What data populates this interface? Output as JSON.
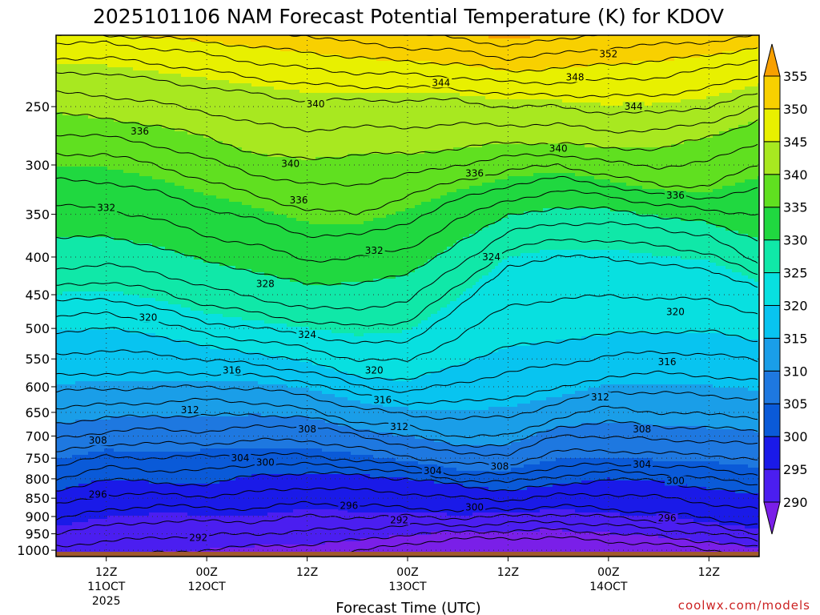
{
  "chart_data": {
    "type": "heatmap",
    "title": "2025101106 NAM Forecast Potential Temperature (K) for KDOV",
    "xlabel": "Forecast Time (UTC)",
    "ylabel": "",
    "credit": "coolwx.com/models",
    "y_scale": "log-pressure",
    "ylim": [
      1020,
      200
    ],
    "xlim": [
      6,
      90
    ],
    "grid": true,
    "y_ticks": [
      250,
      300,
      350,
      400,
      450,
      500,
      550,
      600,
      650,
      700,
      750,
      800,
      850,
      900,
      950,
      1000
    ],
    "x_ticks": [
      {
        "hour": 12,
        "lines": [
          "12Z",
          "11OCT",
          "2025"
        ]
      },
      {
        "hour": 24,
        "lines": [
          "00Z",
          "12OCT"
        ]
      },
      {
        "hour": 36,
        "lines": [
          "12Z"
        ]
      },
      {
        "hour": 48,
        "lines": [
          "00Z",
          "13OCT"
        ]
      },
      {
        "hour": 60,
        "lines": [
          "12Z"
        ]
      },
      {
        "hour": 72,
        "lines": [
          "00Z",
          "14OCT"
        ]
      },
      {
        "hour": 84,
        "lines": [
          "12Z"
        ]
      }
    ],
    "colorbar": {
      "levels": [
        290,
        295,
        300,
        305,
        310,
        315,
        320,
        325,
        330,
        335,
        340,
        345,
        350,
        355
      ],
      "colors": [
        "#7a1fe8",
        "#4b1ef0",
        "#1a1ae8",
        "#0a5ad8",
        "#1e78e0",
        "#1a9ee8",
        "#08c4f0",
        "#08e0e0",
        "#10e8a8",
        "#20d840",
        "#60e020",
        "#a8e820",
        "#e8f000",
        "#f8d000",
        "#f8a000"
      ]
    },
    "isentrope_levels": [
      288,
      290,
      292,
      294,
      296,
      298,
      300,
      302,
      304,
      306,
      308,
      310,
      312,
      314,
      316,
      318,
      320,
      322,
      324,
      326,
      328,
      330,
      332,
      334,
      336,
      338,
      340,
      342,
      344,
      346,
      348,
      350,
      352,
      354,
      356
    ],
    "profile_times": [
      6,
      12,
      18,
      24,
      30,
      36,
      42,
      48,
      54,
      60,
      66,
      72,
      78,
      84,
      90
    ],
    "theta_profiles": [
      {
        "theta": 292,
        "p": [
          985,
          975,
          960,
          955,
          950,
          940,
          935,
          925,
          925,
          920,
          915,
          925,
          935,
          950,
          970
        ]
      },
      {
        "theta": 296,
        "p": [
          910,
          880,
          870,
          875,
          880,
          860,
          870,
          875,
          885,
          880,
          870,
          880,
          890,
          905,
          925
        ]
      },
      {
        "theta": 300,
        "p": [
          830,
          800,
          810,
          815,
          790,
          785,
          790,
          800,
          815,
          830,
          815,
          800,
          805,
          825,
          840
        ]
      },
      {
        "theta": 304,
        "p": [
          770,
          745,
          750,
          745,
          740,
          745,
          755,
          770,
          790,
          790,
          770,
          765,
          770,
          775,
          790
        ]
      },
      {
        "theta": 308,
        "p": [
          705,
          690,
          685,
          690,
          680,
          675,
          700,
          720,
          740,
          740,
          700,
          700,
          710,
          710,
          720
        ]
      },
      {
        "theta": 312,
        "p": [
          640,
          635,
          630,
          625,
          630,
          645,
          670,
          680,
          700,
          700,
          660,
          640,
          650,
          655,
          660
        ]
      },
      {
        "theta": 316,
        "p": [
          580,
          575,
          575,
          575,
          580,
          590,
          615,
          630,
          630,
          620,
          605,
          580,
          575,
          580,
          590
        ]
      },
      {
        "theta": 320,
        "p": [
          505,
          500,
          510,
          530,
          540,
          555,
          580,
          590,
          560,
          530,
          520,
          510,
          505,
          505,
          520
        ]
      },
      {
        "theta": 324,
        "p": [
          460,
          455,
          470,
          490,
          500,
          510,
          525,
          520,
          470,
          410,
          400,
          400,
          410,
          415,
          440
        ]
      },
      {
        "theta": 328,
        "p": [
          415,
          410,
          420,
          440,
          455,
          470,
          470,
          460,
          410,
          370,
          360,
          360,
          365,
          375,
          410
        ]
      },
      {
        "theta": 332,
        "p": [
          340,
          345,
          355,
          375,
          385,
          405,
          400,
          390,
          355,
          335,
          325,
          330,
          340,
          345,
          350
        ]
      },
      {
        "theta": 336,
        "p": [
          290,
          290,
          300,
          315,
          330,
          345,
          350,
          330,
          315,
          305,
          300,
          310,
          320,
          320,
          300
        ]
      },
      {
        "theta": 340,
        "p": [
          255,
          260,
          265,
          275,
          290,
          295,
          290,
          290,
          285,
          280,
          280,
          285,
          285,
          275,
          260
        ]
      },
      {
        "theta": 344,
        "p": [
          225,
          225,
          230,
          235,
          240,
          245,
          245,
          245,
          245,
          250,
          250,
          255,
          255,
          250,
          240
        ]
      },
      {
        "theta": 348,
        "p": [
          205,
          205,
          208,
          212,
          218,
          222,
          225,
          226,
          228,
          232,
          232,
          230,
          228,
          222,
          215
        ]
      },
      {
        "theta": 352,
        "p": [
          195,
          195,
          195,
          196,
          198,
          200,
          205,
          208,
          210,
          215,
          212,
          208,
          206,
          204,
          200
        ]
      }
    ],
    "contour_labels": [
      {
        "text": "352",
        "hour": 72,
        "p": 212
      },
      {
        "text": "348",
        "hour": 68,
        "p": 228
      },
      {
        "text": "344",
        "hour": 52,
        "p": 232
      },
      {
        "text": "344",
        "hour": 75,
        "p": 250
      },
      {
        "text": "340",
        "hour": 37,
        "p": 248
      },
      {
        "text": "340",
        "hour": 34,
        "p": 299
      },
      {
        "text": "340",
        "hour": 66,
        "p": 285
      },
      {
        "text": "336",
        "hour": 16,
        "p": 270
      },
      {
        "text": "336",
        "hour": 56,
        "p": 308
      },
      {
        "text": "336",
        "hour": 80,
        "p": 330
      },
      {
        "text": "336",
        "hour": 35,
        "p": 335
      },
      {
        "text": "332",
        "hour": 12,
        "p": 343
      },
      {
        "text": "332",
        "hour": 44,
        "p": 392
      },
      {
        "text": "328",
        "hour": 31,
        "p": 435
      },
      {
        "text": "324",
        "hour": 58,
        "p": 400
      },
      {
        "text": "324",
        "hour": 36,
        "p": 510
      },
      {
        "text": "320",
        "hour": 17,
        "p": 483
      },
      {
        "text": "320",
        "hour": 44,
        "p": 570
      },
      {
        "text": "320",
        "hour": 80,
        "p": 475
      },
      {
        "text": "316",
        "hour": 27,
        "p": 570
      },
      {
        "text": "316",
        "hour": 45,
        "p": 625
      },
      {
        "text": "316",
        "hour": 79,
        "p": 555
      },
      {
        "text": "312",
        "hour": 22,
        "p": 645
      },
      {
        "text": "312",
        "hour": 47,
        "p": 680
      },
      {
        "text": "312",
        "hour": 71,
        "p": 620
      },
      {
        "text": "308",
        "hour": 11,
        "p": 710
      },
      {
        "text": "308",
        "hour": 36,
        "p": 685
      },
      {
        "text": "308",
        "hour": 76,
        "p": 685
      },
      {
        "text": "308",
        "hour": 59,
        "p": 770
      },
      {
        "text": "304",
        "hour": 28,
        "p": 750
      },
      {
        "text": "304",
        "hour": 51,
        "p": 780
      },
      {
        "text": "304",
        "hour": 76,
        "p": 765
      },
      {
        "text": "300",
        "hour": 31,
        "p": 760
      },
      {
        "text": "300",
        "hour": 56,
        "p": 875
      },
      {
        "text": "300",
        "hour": 80,
        "p": 805
      },
      {
        "text": "296",
        "hour": 11,
        "p": 840
      },
      {
        "text": "296",
        "hour": 41,
        "p": 870
      },
      {
        "text": "296",
        "hour": 79,
        "p": 905
      },
      {
        "text": "292",
        "hour": 47,
        "p": 910
      },
      {
        "text": "292",
        "hour": 23,
        "p": 962
      }
    ]
  }
}
